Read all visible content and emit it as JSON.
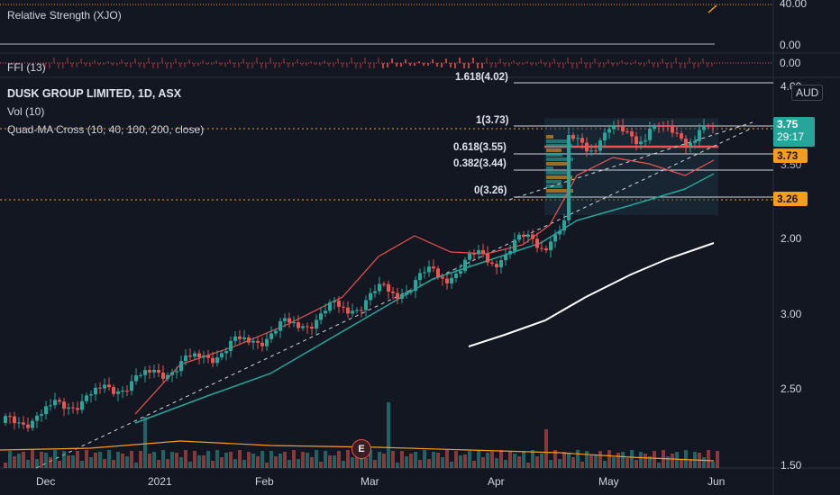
{
  "panes": {
    "rs": {
      "label": "Relative Strength (XJO)",
      "axis_top": "40.00",
      "axis_zero": "0.00"
    },
    "ffi": {
      "label": "FFI (13)",
      "axis_zero": "0.00"
    }
  },
  "main": {
    "symbol_title": "DUSK GROUP LIMITED, 1D, ASX",
    "vol_label": "Vol (10)",
    "ma_label": "Quad-MA Cross (10, 40, 100, 200, close)",
    "currency": "AUD",
    "price_axis": [
      "4.00",
      "3.50",
      "3.00",
      "2.50",
      "2.00",
      "1.50"
    ],
    "current_price": "3.75",
    "countdown": "29:17",
    "tag_373": "3.73",
    "tag_326": "3.26",
    "fib_levels": {
      "f1618": "1.618(4.02)",
      "f1": "1(3.73)",
      "f0618": "0.618(3.55)",
      "f0382": "0.382(3.44)",
      "f0": "0(3.26)"
    },
    "earnings_marker": "E",
    "time_axis": [
      "Dec",
      "2021",
      "Feb",
      "Mar",
      "Apr",
      "May",
      "Jun"
    ]
  },
  "colors": {
    "background": "#131722",
    "up": "#26a69a",
    "down": "#ef5350",
    "accent_teal": "#26a69a",
    "accent_orange": "#f89c1c",
    "ma_white": "#ffffff"
  }
}
